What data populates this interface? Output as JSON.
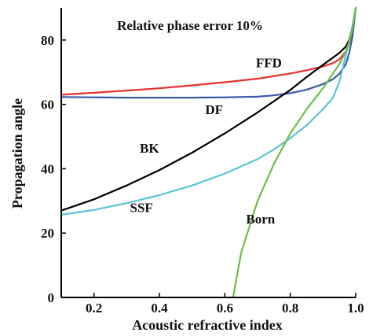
{
  "chart_data": {
    "type": "line",
    "annotation": "Relative phase error 10%",
    "xlabel": "Acoustic refractive index",
    "ylabel": "Propagation angle",
    "xlim": [
      0.1,
      1.0
    ],
    "ylim": [
      0,
      90
    ],
    "xticks": [
      0.2,
      0.4,
      0.6,
      0.8,
      1.0
    ],
    "xtick_labels": [
      "0.2",
      "0.4",
      "0.6",
      "0.8",
      "1.0"
    ],
    "yticks": [
      0,
      20,
      40,
      60,
      80
    ],
    "ytick_labels": [
      "0",
      "20",
      "40",
      "60",
      "80"
    ],
    "grid": false,
    "series": [
      {
        "name": "FFD",
        "color": "#e8322e",
        "x": [
          0.1,
          0.2,
          0.3,
          0.4,
          0.5,
          0.6,
          0.7,
          0.8,
          0.85,
          0.9,
          0.93,
          0.95,
          0.97,
          0.98,
          0.99,
          1.0
        ],
        "y": [
          63,
          63.6,
          64.3,
          65,
          65.9,
          66.9,
          68,
          69.6,
          70.6,
          71.8,
          72.8,
          74,
          76.5,
          79,
          83,
          90
        ]
      },
      {
        "name": "DF",
        "color": "#3a5aa8",
        "x": [
          0.1,
          0.2,
          0.3,
          0.4,
          0.5,
          0.6,
          0.7,
          0.75,
          0.8,
          0.85,
          0.9,
          0.93,
          0.95,
          0.97,
          0.98,
          0.99,
          1.0
        ],
        "y": [
          62.3,
          62.2,
          62.1,
          62.1,
          62.1,
          62.2,
          62.4,
          62.8,
          63.5,
          64.6,
          66.3,
          67.8,
          69.5,
          72.5,
          76,
          81,
          90
        ]
      },
      {
        "name": "BK",
        "color": "#000000",
        "x": [
          0.1,
          0.2,
          0.3,
          0.4,
          0.5,
          0.6,
          0.7,
          0.8,
          0.85,
          0.9,
          0.93,
          0.95,
          0.97,
          0.98,
          0.99,
          1.0
        ],
        "y": [
          27,
          30.5,
          34.8,
          39.6,
          45,
          51,
          57.5,
          64.5,
          68.5,
          72.3,
          74.5,
          76,
          78,
          80,
          84,
          90
        ]
      },
      {
        "name": "SSF",
        "color": "#5bc4d4",
        "x": [
          0.1,
          0.2,
          0.3,
          0.4,
          0.5,
          0.6,
          0.7,
          0.75,
          0.8,
          0.85,
          0.9,
          0.93,
          0.95,
          0.96,
          0.97,
          0.98,
          0.99,
          1.0
        ],
        "y": [
          25.7,
          27.2,
          29.3,
          31.8,
          34.8,
          38.5,
          43,
          46,
          49.5,
          53.5,
          58.5,
          62,
          67,
          71,
          75.5,
          79.5,
          84,
          90
        ]
      },
      {
        "name": "Born",
        "color": "#6cbf45",
        "x": [
          0.625,
          0.65,
          0.7,
          0.75,
          0.8,
          0.85,
          0.9,
          0.93,
          0.95,
          0.97,
          0.98,
          0.99,
          1.0
        ],
        "y": [
          0,
          14,
          30,
          41.5,
          51,
          58.5,
          65,
          69.5,
          72.5,
          76.5,
          79.5,
          83.5,
          90
        ]
      }
    ],
    "labels": [
      {
        "text": "FFD",
        "x": 0.695,
        "y": 71.5
      },
      {
        "text": "DF",
        "x": 0.54,
        "y": 57
      },
      {
        "text": "BK",
        "x": 0.34,
        "y": 45
      },
      {
        "text": "SSF",
        "x": 0.31,
        "y": 26.5
      },
      {
        "text": "Born",
        "x": 0.665,
        "y": 23
      }
    ]
  }
}
